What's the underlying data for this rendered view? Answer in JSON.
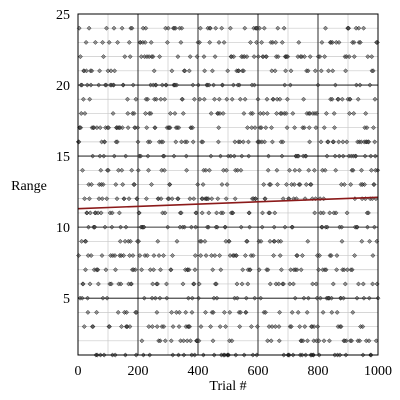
{
  "chart_data": {
    "type": "scatter",
    "xlabel": "Trial #",
    "ylabel": "Range",
    "xlim": [
      0,
      1000
    ],
    "ylim": [
      1,
      25
    ],
    "x_ticks": [
      0,
      200,
      400,
      600,
      800,
      1000
    ],
    "y_ticks": [
      5,
      10,
      15,
      20,
      25
    ],
    "x_tick_labels": [
      "0",
      "200",
      "400",
      "600",
      "800",
      "1000"
    ],
    "y_tick_labels": [
      "5",
      "10",
      "15",
      "20",
      "25"
    ],
    "grid": true,
    "series": [
      {
        "marker": "diamond",
        "color": "#444444",
        "description": "about 1000 trials, each with an integer range value from 1 to 24"
      }
    ],
    "trend_line": {
      "color": "#8b1a1a",
      "x": [
        0,
        1000
      ],
      "y": [
        11.3,
        12.1
      ]
    }
  }
}
